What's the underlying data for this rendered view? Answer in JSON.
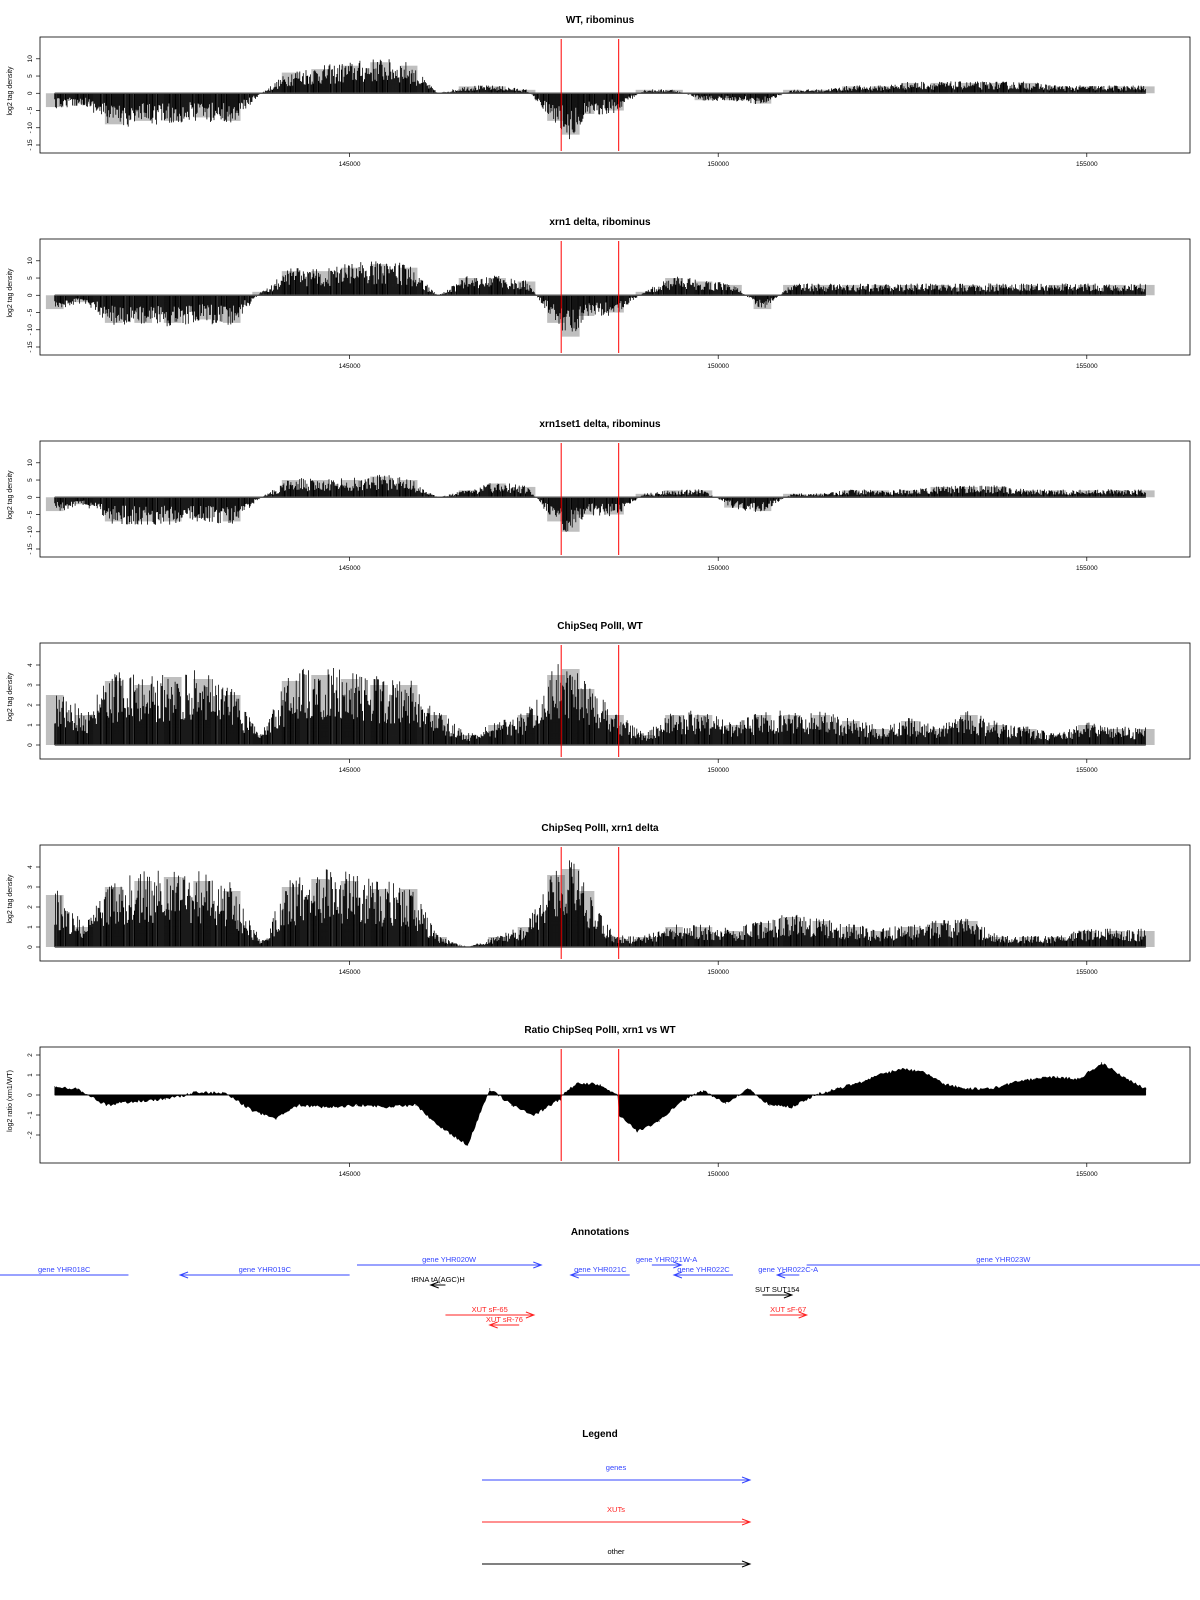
{
  "colors": {
    "gene": "#3344ff",
    "xut": "#ff2222",
    "other": "#000000",
    "marker": "#ff0000",
    "signal": "#000000"
  },
  "marker_positions": [
    147870,
    148650
  ],
  "chart_data": [
    {
      "type": "bar",
      "id": "p1",
      "title": "WT, ribominus",
      "ylabel": "log2 tag density",
      "xlim": [
        140800,
        156400
      ],
      "ylim": [
        -15,
        14
      ],
      "yticks": [
        10,
        5,
        0,
        -5,
        -10,
        -15
      ],
      "ytick_labels": [
        "10",
        "5",
        "0",
        "- 5",
        "- 10",
        "- 15"
      ],
      "xticks": [
        145000,
        150000,
        155000
      ],
      "xtick_labels": [
        "145000",
        "150000",
        "155000"
      ],
      "series": [
        {
          "x": [
            141000,
            141400,
            141800,
            142200,
            142600,
            143000,
            143400,
            143800,
            144200,
            144600,
            145000,
            145400,
            145800,
            146200,
            146600,
            147000,
            147400,
            147800,
            148000,
            148200,
            148600,
            149000,
            149400,
            149800,
            150200,
            150600,
            151000,
            151400,
            151800,
            152200,
            152600,
            153000,
            153400,
            153800,
            154200,
            154600,
            155000,
            155400,
            155800
          ],
          "values": [
            -4,
            -3,
            -9,
            -8,
            -8,
            -7,
            -8,
            0,
            6,
            7,
            8,
            9,
            8,
            0,
            2,
            2,
            1,
            -8,
            -12,
            -6,
            -5,
            1,
            1,
            -2,
            -2,
            -3,
            1,
            1,
            2,
            2,
            3,
            3,
            3,
            3,
            3,
            2,
            2,
            2,
            2
          ]
        }
      ]
    },
    {
      "type": "bar",
      "id": "p2",
      "title": "xrn1 delta, ribominus",
      "ylabel": "log2 tag density",
      "xlim": [
        140800,
        156400
      ],
      "ylim": [
        -15,
        14
      ],
      "yticks": [
        10,
        5,
        0,
        -5,
        -10,
        -15
      ],
      "ytick_labels": [
        "10",
        "5",
        "0",
        "- 5",
        "- 10",
        "- 15"
      ],
      "xticks": [
        145000,
        150000,
        155000
      ],
      "xtick_labels": [
        "145000",
        "150000",
        "155000"
      ],
      "series": [
        {
          "x": [
            141000,
            141400,
            141800,
            142200,
            142600,
            143000,
            143400,
            143800,
            144200,
            144600,
            145000,
            145400,
            145800,
            146200,
            146600,
            147000,
            147400,
            147800,
            148000,
            148200,
            148600,
            149000,
            149400,
            149800,
            150200,
            150600,
            151000,
            151400,
            151800,
            152200,
            152600,
            153000,
            153400,
            153800,
            154200,
            154600,
            155000,
            155400,
            155800
          ],
          "values": [
            -4,
            -2,
            -8,
            -8,
            -8,
            -7,
            -8,
            1,
            7,
            7,
            8,
            9,
            8,
            0,
            5,
            5,
            4,
            -8,
            -12,
            -6,
            -5,
            1,
            5,
            4,
            3,
            -4,
            3,
            3,
            3,
            3,
            3,
            3,
            3,
            3,
            3,
            3,
            3,
            3,
            3
          ]
        }
      ]
    },
    {
      "type": "bar",
      "id": "p3",
      "title": "xrn1set1 delta, ribominus",
      "ylabel": "log2 tag density",
      "xlim": [
        140800,
        156400
      ],
      "ylim": [
        -15,
        14
      ],
      "yticks": [
        10,
        5,
        0,
        -5,
        -10,
        -15
      ],
      "ytick_labels": [
        "10",
        "5",
        "0",
        "- 5",
        "- 10",
        "- 15"
      ],
      "xticks": [
        145000,
        150000,
        155000
      ],
      "xtick_labels": [
        "145000",
        "150000",
        "155000"
      ],
      "series": [
        {
          "x": [
            141000,
            141400,
            141800,
            142200,
            142600,
            143000,
            143400,
            143800,
            144200,
            144600,
            145000,
            145400,
            145800,
            146200,
            146600,
            147000,
            147400,
            147800,
            148000,
            148200,
            148600,
            149000,
            149400,
            149800,
            150200,
            150600,
            151000,
            151400,
            151800,
            152200,
            152600,
            153000,
            153400,
            153800,
            154200,
            154600,
            155000,
            155400,
            155800
          ],
          "values": [
            -4,
            -2,
            -7,
            -7,
            -7,
            -6,
            -7,
            0,
            5,
            5,
            5,
            6,
            5,
            0,
            2,
            4,
            3,
            -7,
            -10,
            -5,
            -5,
            1,
            2,
            2,
            -3,
            -4,
            1,
            1,
            2,
            2,
            2,
            3,
            3,
            3,
            2,
            2,
            2,
            2,
            2
          ]
        }
      ]
    },
    {
      "type": "bar",
      "id": "p4",
      "title": "ChipSeq PolII, WT",
      "ylabel": "log2 tag density",
      "xlim": [
        140800,
        156400
      ],
      "ylim": [
        -0.3,
        4.7
      ],
      "yticks": [
        0,
        1,
        2,
        3,
        4
      ],
      "ytick_labels": [
        "0",
        "1",
        "2",
        "3",
        "4"
      ],
      "xticks": [
        145000,
        150000,
        155000
      ],
      "xtick_labels": [
        "145000",
        "150000",
        "155000"
      ],
      "series": [
        {
          "x": [
            141000,
            141400,
            141800,
            142200,
            142600,
            143000,
            143400,
            143800,
            144200,
            144600,
            145000,
            145400,
            145800,
            146200,
            146600,
            147000,
            147400,
            147800,
            148000,
            148200,
            148600,
            149000,
            149400,
            149800,
            150200,
            150600,
            151000,
            151400,
            151800,
            152200,
            152600,
            153000,
            153400,
            153800,
            154200,
            154600,
            155000,
            155400,
            155800
          ],
          "values": [
            2.5,
            1.5,
            3.2,
            3.0,
            3.4,
            3.3,
            2.5,
            0.5,
            3.2,
            3.5,
            3.3,
            3.0,
            3.0,
            1.5,
            0.5,
            1.0,
            1.5,
            3.5,
            3.8,
            2.8,
            1.5,
            0.5,
            1.5,
            1.5,
            1.0,
            1.5,
            1.5,
            1.5,
            1.2,
            0.8,
            1.2,
            0.8,
            1.5,
            1.0,
            0.8,
            0.5,
            1.0,
            0.8,
            0.8
          ]
        }
      ]
    },
    {
      "type": "bar",
      "id": "p5",
      "title": "ChipSeq PolII, xrn1 delta",
      "ylabel": "log2 tag density",
      "xlim": [
        140800,
        156400
      ],
      "ylim": [
        -0.3,
        4.7
      ],
      "yticks": [
        0,
        1,
        2,
        3,
        4
      ],
      "ytick_labels": [
        "0",
        "1",
        "2",
        "3",
        "4"
      ],
      "xticks": [
        145000,
        150000,
        155000
      ],
      "xtick_labels": [
        "145000",
        "150000",
        "155000"
      ],
      "series": [
        {
          "x": [
            141000,
            141400,
            141800,
            142200,
            142600,
            143000,
            143400,
            143800,
            144200,
            144600,
            145000,
            145400,
            145800,
            146200,
            146600,
            147000,
            147400,
            147800,
            148000,
            148200,
            148600,
            149000,
            149400,
            149800,
            150200,
            150600,
            151000,
            151400,
            151800,
            152200,
            152600,
            153000,
            153400,
            153800,
            154200,
            154600,
            155000,
            155400,
            155800
          ],
          "values": [
            2.6,
            1.0,
            3.0,
            3.3,
            3.5,
            3.3,
            2.8,
            0.3,
            3.0,
            3.4,
            3.3,
            2.9,
            2.9,
            0.5,
            0.0,
            0.5,
            1.0,
            3.6,
            3.9,
            2.8,
            0.5,
            0.5,
            1.0,
            1.0,
            0.8,
            1.2,
            1.5,
            1.3,
            1.0,
            0.8,
            1.0,
            1.2,
            1.3,
            0.5,
            0.5,
            0.5,
            0.8,
            0.8,
            0.8
          ]
        }
      ]
    },
    {
      "type": "area",
      "id": "p6",
      "title": "Ratio ChipSeq PolII, xrn1 vs WT",
      "ylabel": "log2 ratio (xrn1/WT)",
      "xlim": [
        140800,
        156400
      ],
      "ylim": [
        -3.0,
        2.0
      ],
      "yticks": [
        2,
        1,
        0,
        -1,
        -2
      ],
      "ytick_labels": [
        "2",
        "1",
        "0",
        "- 1",
        "- 2"
      ],
      "xticks": [
        145000,
        150000,
        155000
      ],
      "xtick_labels": [
        "145000",
        "150000",
        "155000"
      ],
      "series": [
        {
          "x": [
            141000,
            141300,
            141700,
            142100,
            142500,
            142900,
            143300,
            143700,
            144000,
            144300,
            144700,
            145100,
            145500,
            145900,
            146200,
            146400,
            146600,
            146900,
            147200,
            147500,
            147860,
            147880,
            148100,
            148400,
            148640,
            148660,
            148900,
            149200,
            149500,
            149800,
            150100,
            150400,
            150700,
            151000,
            151300,
            151600,
            151900,
            152200,
            152500,
            152800,
            153100,
            153400,
            153700,
            154000,
            154300,
            154600,
            154900,
            155200,
            155500,
            155800
          ],
          "values": [
            0.4,
            0.3,
            -0.5,
            -0.3,
            -0.2,
            0.1,
            0.1,
            -0.8,
            -1.2,
            -0.5,
            -0.6,
            -0.5,
            -0.6,
            -0.5,
            -1.5,
            -2.0,
            -2.5,
            0.3,
            -0.5,
            -1.0,
            -0.2,
            0.0,
            0.6,
            0.5,
            0.0,
            -1.0,
            -1.8,
            -1.3,
            -0.3,
            0.2,
            -0.4,
            0.3,
            -0.5,
            -0.6,
            0.0,
            0.3,
            0.6,
            1.0,
            1.3,
            1.1,
            0.5,
            0.3,
            0.3,
            0.6,
            0.8,
            0.9,
            0.8,
            1.6,
            0.9,
            0.3
          ]
        }
      ]
    }
  ],
  "annotations": {
    "title": "Annotations",
    "items": [
      {
        "label": "gene YHR018C",
        "type": "gene",
        "x1": 140200,
        "x2": 142000,
        "dir": "none",
        "row": 0
      },
      {
        "label": "gene YHR019C",
        "type": "gene",
        "x1": 142700,
        "x2": 145000,
        "dir": "left",
        "row": 0
      },
      {
        "label": "gene YHR020W",
        "type": "gene",
        "x1": 145100,
        "x2": 147600,
        "dir": "right",
        "row": -1
      },
      {
        "label": "gene YHR021C",
        "type": "gene",
        "x1": 148000,
        "x2": 148800,
        "dir": "left",
        "row": 0
      },
      {
        "label": "gene YHR021W-A",
        "type": "gene",
        "x1": 149100,
        "x2": 149500,
        "dir": "right",
        "row": -1
      },
      {
        "label": "gene YHR022C",
        "type": "gene",
        "x1": 149400,
        "x2": 150200,
        "dir": "left",
        "row": 0
      },
      {
        "label": "gene YHR022C-A",
        "type": "gene",
        "x1": 150800,
        "x2": 151100,
        "dir": "left",
        "row": 0
      },
      {
        "label": "gene YHR023W",
        "type": "gene",
        "x1": 151200,
        "x2": 157000,
        "dir": "none",
        "row": -1
      },
      {
        "label": "tRNA tA(AGC)H",
        "type": "other",
        "x1": 146100,
        "x2": 146300,
        "dir": "left",
        "row": 1
      },
      {
        "label": "SUT SUT154",
        "type": "other",
        "x1": 150600,
        "x2": 151000,
        "dir": "right",
        "row": 2
      },
      {
        "label": "XUT sF-65",
        "type": "xut",
        "x1": 146300,
        "x2": 147500,
        "dir": "right",
        "row": 4
      },
      {
        "label": "XUT sR-76",
        "type": "xut",
        "x1": 146900,
        "x2": 147300,
        "dir": "left",
        "row": 5
      },
      {
        "label": "XUT sF-67",
        "type": "xut",
        "x1": 150700,
        "x2": 151200,
        "dir": "right",
        "row": 4
      }
    ]
  },
  "legend": {
    "title": "Legend",
    "items": [
      {
        "label": "genes",
        "type": "gene"
      },
      {
        "label": "XUTs",
        "type": "xut"
      },
      {
        "label": "other",
        "type": "other"
      }
    ]
  }
}
